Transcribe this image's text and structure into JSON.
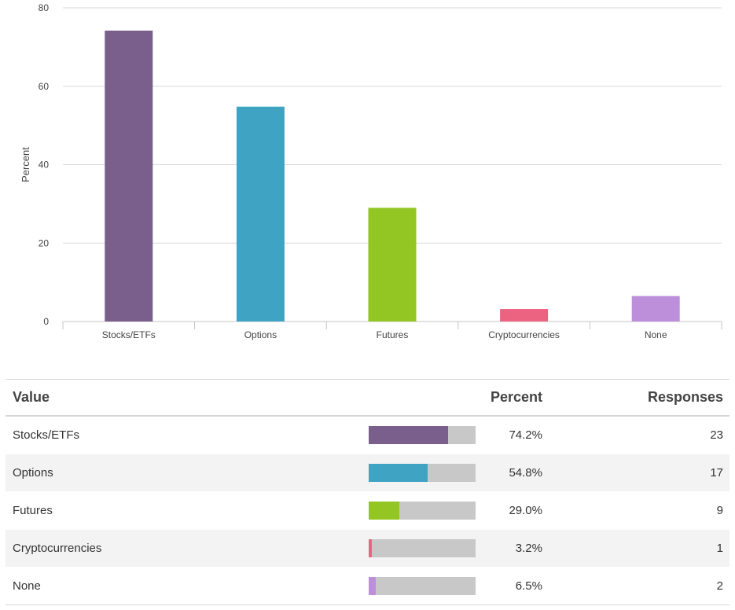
{
  "chart_data": {
    "type": "bar",
    "categories": [
      "Stocks/ETFs",
      "Options",
      "Futures",
      "Cryptocurrencies",
      "None"
    ],
    "values": [
      74.2,
      54.8,
      29.0,
      3.2,
      6.5
    ],
    "colors": [
      "#7a5e8c",
      "#3fa3c3",
      "#93c623",
      "#ec6382",
      "#bd8fdb"
    ],
    "title": "",
    "xlabel": "",
    "ylabel": "Percent",
    "ylim": [
      0,
      80
    ],
    "yticks": [
      0,
      20,
      40,
      60,
      80
    ],
    "grid": true
  },
  "table": {
    "headers": {
      "value": "Value",
      "percent": "Percent",
      "responses": "Responses"
    },
    "rows": [
      {
        "value": "Stocks/ETFs",
        "percent": "74.2%",
        "responses": "23",
        "fraction": 0.742,
        "color": "#7a5e8c"
      },
      {
        "value": "Options",
        "percent": "54.8%",
        "responses": "17",
        "fraction": 0.548,
        "color": "#3fa3c3"
      },
      {
        "value": "Futures",
        "percent": "29.0%",
        "responses": "9",
        "fraction": 0.29,
        "color": "#93c623"
      },
      {
        "value": "Cryptocurrencies",
        "percent": "3.2%",
        "responses": "1",
        "fraction": 0.032,
        "color": "#ec6382"
      },
      {
        "value": "None",
        "percent": "6.5%",
        "responses": "2",
        "fraction": 0.065,
        "color": "#bd8fdb"
      }
    ]
  }
}
